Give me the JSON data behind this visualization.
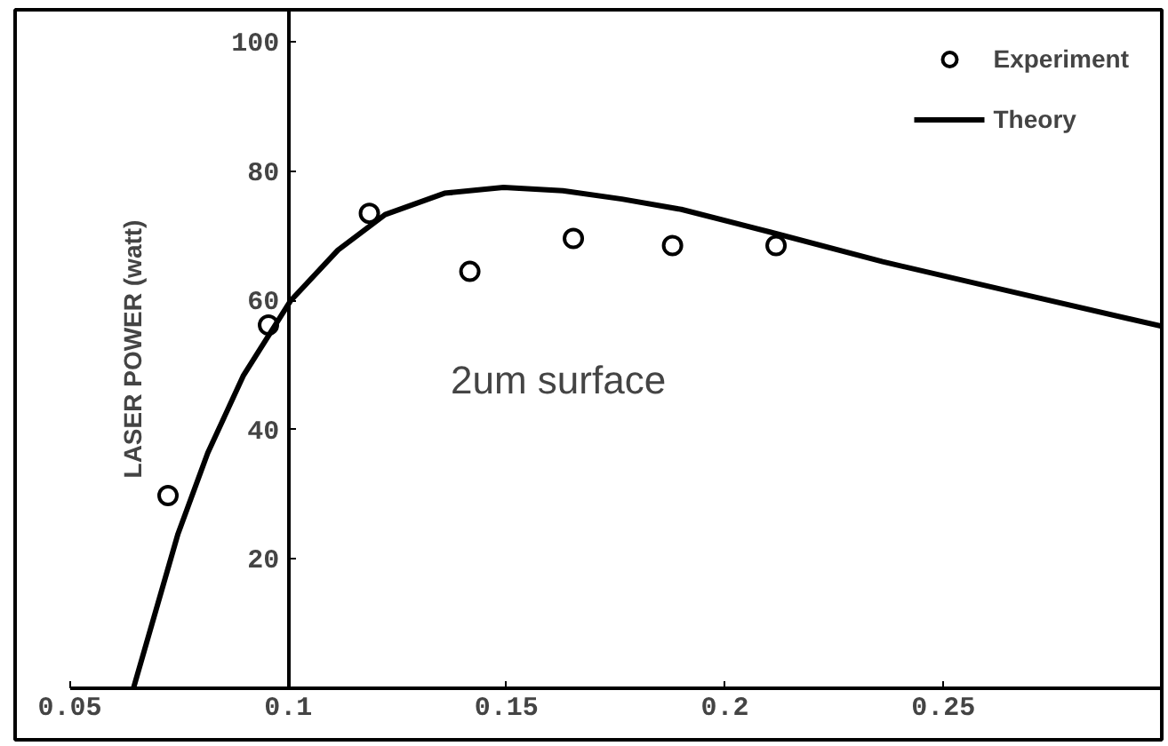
{
  "chart_data": {
    "type": "scatter",
    "ylabel": "LASER POWER (watt)",
    "xlim": [
      0.0375,
      0.3
    ],
    "ylim": [
      -8,
      105
    ],
    "xticks": [
      0.05,
      0.1,
      0.15,
      0.2,
      0.25
    ],
    "yticks": [
      20,
      40,
      60,
      80,
      100
    ],
    "legend": "top right",
    "grid": false,
    "annotations": [
      "2um surface"
    ],
    "series": [
      {
        "name": "Experiment",
        "marker": "circle",
        "color": "#000000",
        "x": [
          0.0725,
          0.0955,
          0.1186,
          0.1416,
          0.1653,
          0.188,
          0.2117
        ],
        "values": [
          29.8,
          56.2,
          73.5,
          64.5,
          69.6,
          68.5,
          68.5
        ]
      },
      {
        "name": "Theory",
        "type": "line",
        "color": "#000000",
        "x": [
          0.0646,
          0.0748,
          0.0816,
          0.0897,
          0.1005,
          0.1114,
          0.1222,
          0.1358,
          0.1493,
          0.1629,
          0.1764,
          0.19,
          0.2103,
          0.2361,
          0.268,
          0.3
        ],
        "values": [
          0,
          23.9,
          36.4,
          48.3,
          59.9,
          67.8,
          73.3,
          76.6,
          77.5,
          77.0,
          75.7,
          74.1,
          70.6,
          66.0,
          61,
          56
        ]
      }
    ]
  }
}
